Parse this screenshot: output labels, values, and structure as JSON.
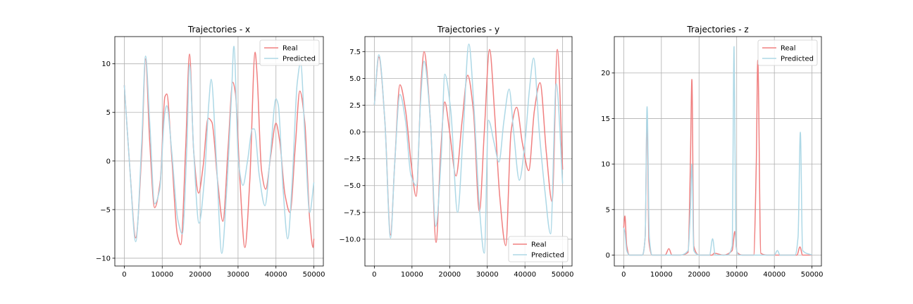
{
  "figure": {
    "background": "#ffffff"
  },
  "colors": {
    "real": "#f08080",
    "predicted": "#add8e6",
    "grid": "#b0b0b0",
    "axes": "#000000"
  },
  "chart_data": [
    {
      "type": "line",
      "title": "Trajectories - x",
      "xlim": [
        -2500,
        52500
      ],
      "ylim": [
        -10.8,
        12.8
      ],
      "xticks": [
        0,
        10000,
        20000,
        30000,
        40000,
        50000
      ],
      "xtick_labels": [
        "0",
        "10000",
        "20000",
        "30000",
        "40000",
        "50000"
      ],
      "yticks": [
        -10,
        -5,
        0,
        5,
        10
      ],
      "ytick_labels": [
        "−10",
        "−5",
        "0",
        "5",
        "10"
      ],
      "grid": true,
      "legend": "upper right",
      "series": [
        {
          "name": "Real",
          "color": "#f08080",
          "x": [
            0,
            1500,
            3000,
            4600,
            5600,
            6700,
            8000,
            9500,
            10700,
            11200,
            12500,
            14000,
            14900,
            16200,
            17200,
            18300,
            19600,
            20800,
            22100,
            23100,
            24600,
            26000,
            27400,
            28600,
            29300,
            30500,
            31800,
            33100,
            34500,
            35000,
            36200,
            37300,
            38600,
            40000,
            41000,
            42400,
            43700,
            45100,
            46300,
            47600,
            48900,
            49800,
            50000
          ],
          "y": [
            7.8,
            -1.0,
            -7.9,
            1.0,
            10.5,
            2.0,
            -4.8,
            -2.0,
            6.6,
            6.9,
            0.5,
            -7.6,
            -8.6,
            1.5,
            11.0,
            1.0,
            -3.3,
            -0.5,
            4.4,
            4.0,
            -2.0,
            -6.2,
            1.5,
            8.1,
            7.0,
            -2.0,
            -8.9,
            -2.0,
            11.2,
            9.0,
            -1.0,
            -2.9,
            0.5,
            3.9,
            2.0,
            -3.5,
            -5.3,
            1.5,
            7.2,
            4.0,
            -6.0,
            -8.9,
            -8.0
          ]
        },
        {
          "name": "Predicted",
          "color": "#add8e6",
          "x": [
            0,
            1500,
            3000,
            4600,
            5600,
            6700,
            8000,
            9300,
            10700,
            11200,
            12500,
            14100,
            15300,
            16500,
            17200,
            18300,
            19700,
            21100,
            22300,
            22900,
            24300,
            25700,
            27000,
            28300,
            28900,
            30100,
            31300,
            32500,
            33800,
            34300,
            35600,
            37100,
            38500,
            40000,
            40600,
            41900,
            43100,
            44300,
            45600,
            46500,
            47700,
            48900,
            50000
          ],
          "y": [
            7.8,
            -1.0,
            -8.3,
            2.0,
            10.8,
            4.0,
            -4.4,
            -3.0,
            5.0,
            5.7,
            1.0,
            -6.0,
            -7.5,
            1.5,
            9.9,
            1.0,
            -6.4,
            -2.0,
            6.0,
            8.4,
            0.0,
            -9.5,
            -3.0,
            7.0,
            11.8,
            0.0,
            -2.5,
            0.0,
            3.3,
            3.3,
            -1.5,
            -4.6,
            0.5,
            6.4,
            5.8,
            -3.0,
            -8.0,
            -2.0,
            8.0,
            10.1,
            2.0,
            -5.3,
            -2.2
          ]
        }
      ]
    },
    {
      "type": "line",
      "title": "Trajectories - y",
      "xlim": [
        -2500,
        52500
      ],
      "ylim": [
        -12.5,
        8.9
      ],
      "xticks": [
        0,
        10000,
        20000,
        30000,
        40000,
        50000
      ],
      "xtick_labels": [
        "0",
        "10000",
        "20000",
        "30000",
        "40000",
        "50000"
      ],
      "yticks": [
        -10.0,
        -7.5,
        -5.0,
        -2.5,
        0.0,
        2.5,
        5.0,
        7.5
      ],
      "ytick_labels": [
        "−10.0",
        "−7.5",
        "−5.0",
        "−2.5",
        "0.0",
        "2.5",
        "5.0",
        "7.5"
      ],
      "grid": true,
      "legend": "lower right",
      "series": [
        {
          "name": "Real",
          "color": "#f08080",
          "x": [
            0,
            1200,
            2800,
            4300,
            5400,
            6800,
            8300,
            9800,
            11100,
            12500,
            13200,
            14900,
            16400,
            17600,
            18700,
            20000,
            21700,
            23300,
            24800,
            26300,
            27900,
            29200,
            30600,
            31900,
            33300,
            34900,
            36300,
            37800,
            39300,
            41000,
            42500,
            44000,
            45700,
            47200,
            48600,
            50000
          ],
          "y": [
            2.5,
            7.0,
            1.0,
            -9.6,
            -3.0,
            4.4,
            2.0,
            -3.0,
            -6.0,
            5.0,
            7.5,
            1.0,
            -10.3,
            -2.0,
            2.8,
            0.0,
            -4.1,
            1.0,
            5.3,
            2.0,
            -7.4,
            0.0,
            7.7,
            2.0,
            -6.0,
            -10.6,
            0.0,
            2.3,
            -1.0,
            -3.6,
            2.0,
            4.6,
            -2.0,
            -6.5,
            7.7,
            -3.5
          ]
        },
        {
          "name": "Predicted",
          "color": "#add8e6",
          "x": [
            0,
            1200,
            2800,
            4300,
            5400,
            6800,
            8300,
            9700,
            11200,
            12300,
            13200,
            14900,
            16300,
            17800,
            18700,
            20300,
            22100,
            23600,
            25100,
            26500,
            27900,
            29200,
            30300,
            31800,
            33100,
            34400,
            35800,
            37000,
            38500,
            40000,
            41200,
            42300,
            43800,
            45300,
            46800,
            48300,
            50000
          ],
          "y": [
            2.5,
            7.2,
            1.0,
            -9.9,
            -3.0,
            3.5,
            1.0,
            -4.0,
            -5.0,
            3.0,
            6.6,
            1.0,
            -8.8,
            -2.0,
            5.4,
            2.0,
            -7.5,
            0.0,
            8.2,
            2.0,
            -7.0,
            -11.3,
            1.1,
            -1.0,
            -2.8,
            1.0,
            4.0,
            0.0,
            -4.5,
            -1.0,
            4.0,
            6.9,
            0.0,
            -5.5,
            -9.5,
            4.5,
            -4.8
          ]
        }
      ]
    },
    {
      "type": "line",
      "title": "Trajectories - z",
      "xlim": [
        -2500,
        52500
      ],
      "ylim": [
        -1.2,
        24.0
      ],
      "xticks": [
        0,
        10000,
        20000,
        30000,
        40000,
        50000
      ],
      "xtick_labels": [
        "0",
        "10000",
        "20000",
        "30000",
        "40000",
        "50000"
      ],
      "yticks": [
        0,
        5,
        10,
        15,
        20
      ],
      "ytick_labels": [
        "0",
        "5",
        "10",
        "15",
        "20"
      ],
      "grid": true,
      "legend": "upper right",
      "series": [
        {
          "name": "Real",
          "color": "#f08080",
          "x": [
            0,
            300,
            800,
            1500,
            3000,
            5000,
            5700,
            6200,
            6700,
            7500,
            11000,
            12000,
            12800,
            15000,
            17100,
            17700,
            18100,
            18600,
            20000,
            23500,
            24000,
            26500,
            28800,
            29500,
            30100,
            31500,
            34500,
            35200,
            35600,
            36400,
            38000,
            41000,
            46000,
            46800,
            47500,
            50000
          ],
          "y": [
            3.0,
            4.3,
            1.0,
            0.0,
            0.0,
            0.0,
            2.0,
            15.5,
            1.5,
            0.0,
            0.0,
            0.7,
            0.0,
            0.0,
            0.3,
            10.0,
            19.3,
            1.0,
            0.0,
            0.0,
            0.2,
            0.0,
            0.5,
            2.6,
            0.3,
            0.0,
            0.0,
            10.0,
            21.4,
            0.2,
            0.0,
            0.0,
            0.0,
            0.9,
            0.0,
            0.0
          ]
        },
        {
          "name": "Predicted",
          "color": "#add8e6",
          "x": [
            0,
            300,
            800,
            1500,
            3000,
            5000,
            5700,
            6200,
            6800,
            7500,
            12000,
            15000,
            17100,
            17700,
            18100,
            18600,
            20000,
            22800,
            23600,
            24300,
            27500,
            28800,
            29300,
            29800,
            30500,
            34000,
            40000,
            40800,
            41500,
            45500,
            46300,
            46900,
            47500,
            50000
          ],
          "y": [
            3.0,
            2.5,
            0.5,
            0.0,
            0.0,
            0.0,
            2.0,
            16.3,
            2.0,
            0.0,
            0.0,
            0.0,
            0.5,
            5.0,
            10.0,
            0.5,
            0.0,
            0.0,
            1.8,
            0.0,
            0.0,
            1.0,
            22.9,
            1.0,
            0.0,
            0.0,
            0.0,
            0.5,
            0.0,
            0.0,
            2.0,
            13.5,
            0.5,
            0.0
          ]
        }
      ]
    }
  ]
}
